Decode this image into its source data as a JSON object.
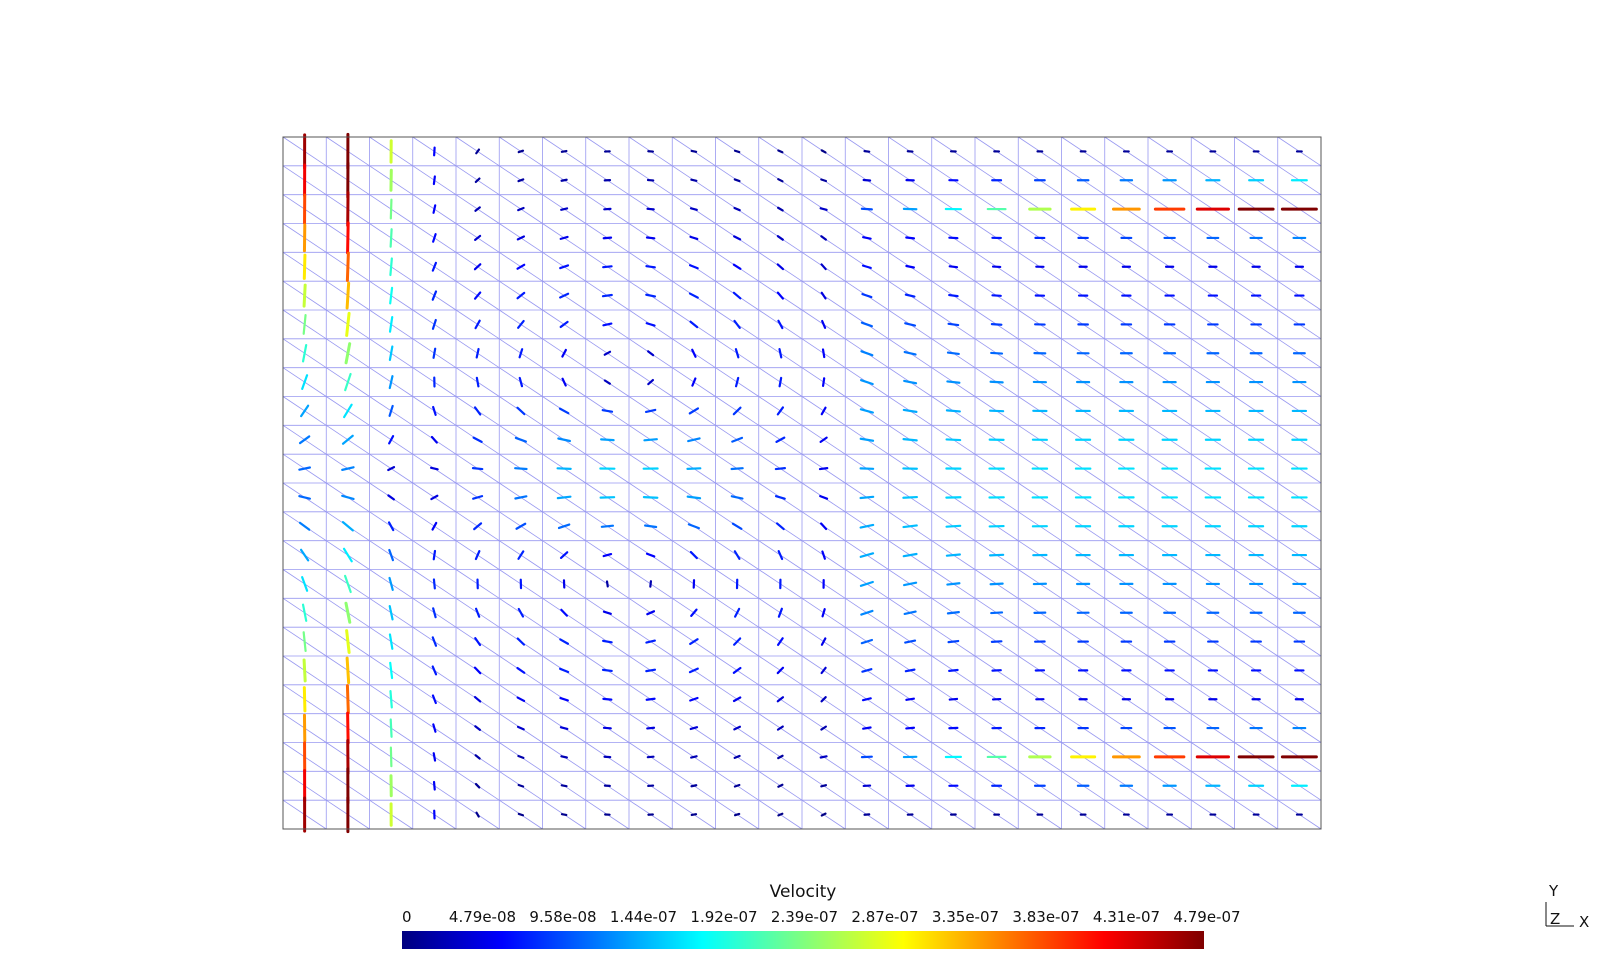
{
  "chart_data": {
    "type": "vector-field",
    "description_free": true,
    "colorbar": {
      "title": "Velocity",
      "min": 0,
      "max": 5e-07,
      "tick_labels": [
        "0",
        "4.79e-08",
        "9.58e-08",
        "1.44e-07",
        "1.92e-07",
        "2.39e-07",
        "2.87e-07",
        "3.35e-07",
        "3.83e-07",
        "4.31e-07",
        "4.79e-07"
      ],
      "colormap": [
        "#00007f",
        "#0000ff",
        "#007fff",
        "#00ffff",
        "#7fff7f",
        "#ffff00",
        "#ff7f00",
        "#ff0000",
        "#7f0000"
      ]
    },
    "mesh": {
      "columns": 24,
      "rows": 24,
      "mesh_color": "#9898f0"
    },
    "axes": {
      "y_label": "Y",
      "z_label": "Z",
      "x_label": "X"
    }
  }
}
